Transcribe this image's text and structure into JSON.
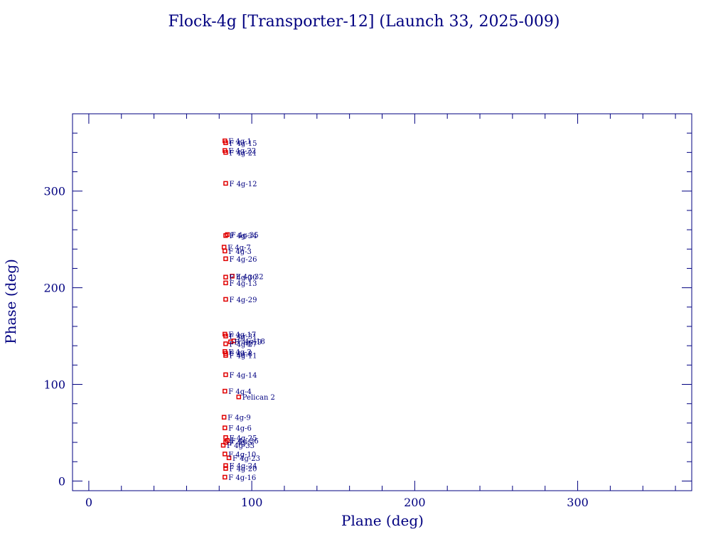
{
  "title": "Flock-4g [Transporter-12] (Launch 33, 2025-009)",
  "colors": {
    "axes": "#000080",
    "text": "#000080",
    "marker": "#e00000"
  },
  "chart_data": {
    "type": "scatter",
    "title": "Flock-4g [Transporter-12] (Launch 33, 2025-009)",
    "xlabel": "Plane (deg)",
    "ylabel": "Phase (deg)",
    "xlim": [
      -10,
      370
    ],
    "ylim": [
      -10,
      380
    ],
    "xticks": [
      0,
      100,
      200,
      300
    ],
    "yticks": [
      0,
      100,
      200,
      300
    ],
    "grid": false,
    "marker_shape": "square",
    "points": [
      {
        "label": "F 4g-1",
        "x": 83.5,
        "y": 352
      },
      {
        "label": "F 4g-15",
        "x": 84,
        "y": 350
      },
      {
        "label": "F 4g-22",
        "x": 83.5,
        "y": 342
      },
      {
        "label": "F 4g-21",
        "x": 84,
        "y": 340
      },
      {
        "label": "F 4g-12",
        "x": 84,
        "y": 308
      },
      {
        "label": "F 4g-35",
        "x": 85,
        "y": 255
      },
      {
        "label": "F 4g-34",
        "x": 84,
        "y": 254
      },
      {
        "label": "F 4g-7",
        "x": 83,
        "y": 242
      },
      {
        "label": "F 4g-3",
        "x": 83.5,
        "y": 238
      },
      {
        "label": "F 4g-26",
        "x": 84,
        "y": 230
      },
      {
        "label": "F 4g-32",
        "x": 88,
        "y": 212
      },
      {
        "label": "F 4g-30",
        "x": 84,
        "y": 211
      },
      {
        "label": "F 4g-13",
        "x": 84,
        "y": 205
      },
      {
        "label": "F 4g-29",
        "x": 84,
        "y": 188
      },
      {
        "label": "F 4g-17",
        "x": 83.5,
        "y": 152
      },
      {
        "label": "F 4g-31",
        "x": 84,
        "y": 150
      },
      {
        "label": "F 4g-18",
        "x": 89,
        "y": 145
      },
      {
        "label": "F 4g-19",
        "x": 87,
        "y": 144
      },
      {
        "label": "F 4g-27",
        "x": 84,
        "y": 142
      },
      {
        "label": "F 4g-2",
        "x": 83.5,
        "y": 134
      },
      {
        "label": "F 4g-8",
        "x": 84,
        "y": 132
      },
      {
        "label": "F 4g-11",
        "x": 84,
        "y": 130
      },
      {
        "label": "F 4g-14",
        "x": 84,
        "y": 110
      },
      {
        "label": "F 4g-4",
        "x": 83.5,
        "y": 93
      },
      {
        "label": "Pelican 2",
        "x": 92,
        "y": 87
      },
      {
        "label": "F 4g-9",
        "x": 83,
        "y": 66
      },
      {
        "label": "F 4g-6",
        "x": 83.5,
        "y": 55
      },
      {
        "label": "F 4g-25",
        "x": 84,
        "y": 45
      },
      {
        "label": "F 4g-36",
        "x": 85,
        "y": 42
      },
      {
        "label": "F 4g-5",
        "x": 84,
        "y": 40
      },
      {
        "label": "F 4g-33",
        "x": 82.5,
        "y": 37
      },
      {
        "label": "F 4g-10",
        "x": 83.5,
        "y": 28
      },
      {
        "label": "F 4g-23",
        "x": 86,
        "y": 24
      },
      {
        "label": "F 4g-24",
        "x": 84,
        "y": 16
      },
      {
        "label": "F 4g-20",
        "x": 84,
        "y": 13
      },
      {
        "label": "F 4g-16",
        "x": 83.5,
        "y": 4
      }
    ]
  }
}
